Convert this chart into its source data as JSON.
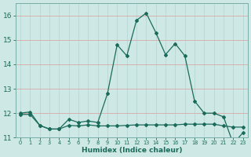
{
  "xlabel": "Humidex (Indice chaleur)",
  "xlim": [
    -0.5,
    23.5
  ],
  "ylim": [
    11,
    16.5
  ],
  "yticks": [
    11,
    12,
    13,
    14,
    15,
    16
  ],
  "xticks": [
    0,
    1,
    2,
    3,
    4,
    5,
    6,
    7,
    8,
    9,
    10,
    11,
    12,
    13,
    14,
    15,
    16,
    17,
    18,
    19,
    20,
    21,
    22,
    23
  ],
  "background_color": "#cde8e5",
  "grid_color_major": "#e8b8b8",
  "grid_color_minor": "#dde8e6",
  "line_color": "#1a6b5a",
  "series1_x": [
    0,
    1,
    2,
    3,
    4,
    5,
    6,
    7,
    8,
    9,
    10,
    11,
    12,
    13,
    14,
    15,
    16,
    17,
    18,
    19,
    20,
    21,
    22,
    23
  ],
  "series1_y": [
    12.0,
    12.05,
    11.5,
    11.35,
    11.35,
    11.75,
    11.62,
    11.68,
    11.62,
    12.8,
    14.8,
    14.35,
    15.8,
    16.1,
    15.3,
    14.4,
    14.85,
    14.35,
    12.5,
    12.0,
    12.0,
    11.85,
    10.75,
    11.2
  ],
  "series2_x": [
    0,
    1,
    2,
    3,
    4,
    5,
    6,
    7,
    8,
    9,
    10,
    11,
    12,
    13,
    14,
    15,
    16,
    17,
    18,
    19,
    20,
    21,
    22,
    23
  ],
  "series2_y": [
    11.95,
    11.95,
    11.5,
    11.35,
    11.35,
    11.5,
    11.48,
    11.52,
    11.48,
    11.48,
    11.48,
    11.5,
    11.52,
    11.52,
    11.52,
    11.52,
    11.52,
    11.55,
    11.55,
    11.55,
    11.55,
    11.48,
    11.43,
    11.43
  ]
}
